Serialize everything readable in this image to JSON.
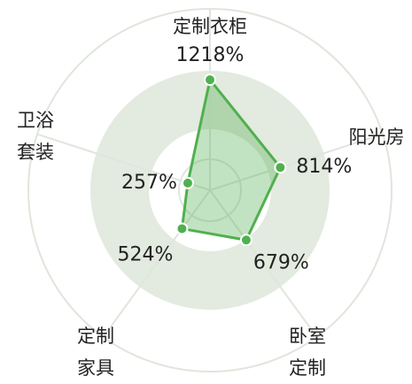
{
  "chart_data": {
    "type": "radar",
    "categories": [
      "定制衣柜",
      "阳光房",
      "卧室定制",
      "定制家具",
      "卫浴套装"
    ],
    "values": [
      1218,
      814,
      679,
      524,
      257
    ],
    "value_labels": [
      "1218%",
      "814%",
      "679%",
      "524%",
      "257%"
    ],
    "rlim": [
      0,
      2000
    ],
    "color": "#4fb04f"
  }
}
